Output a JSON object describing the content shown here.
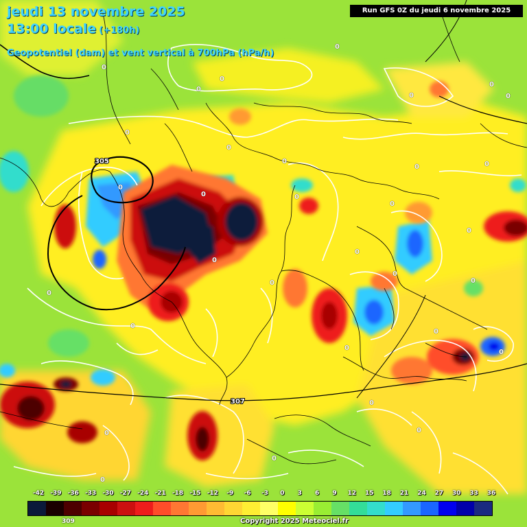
{
  "header": {
    "title": "jeudi 13 novembre 2025",
    "time": "13:00 locale",
    "lead": "(+180h)",
    "subtitle": "Geopotentiel (dam) et vent vertical à 700hPa (hPa/h)",
    "run": "Run GFS 0Z du jeudi 6 novembre 2025"
  },
  "legend": {
    "labels": [
      "-42",
      "-39",
      "-36",
      "-33",
      "-30",
      "-27",
      "-24",
      "-21",
      "-18",
      "-15",
      "-12",
      "-9",
      "-6",
      "-3",
      "0",
      "3",
      "6",
      "9",
      "12",
      "15",
      "18",
      "21",
      "24",
      "27",
      "30",
      "33",
      "36"
    ],
    "colors": [
      "#0b1a3a",
      "#1a0000",
      "#4d0000",
      "#7a0000",
      "#a80000",
      "#cc1010",
      "#ee1c1c",
      "#ff4d2a",
      "#ff7733",
      "#ff9a33",
      "#ffbb33",
      "#ffd633",
      "#ffee33",
      "#ffff66",
      "#ffff00",
      "#ccff33",
      "#99ee33",
      "#66e066",
      "#33dd99",
      "#33ddcc",
      "#33ccff",
      "#3399ff",
      "#1a66ff",
      "#0000ee",
      "#0000aa",
      "#1a2a80"
    ]
  },
  "isohypses": {
    "labels": [
      "305",
      "307",
      "309"
    ]
  },
  "zero_labels": [
    "0",
    "0",
    "0",
    "0",
    "0",
    "0",
    "0",
    "0",
    "0",
    "0",
    "0",
    "0",
    "0",
    "0",
    "0",
    "0",
    "0",
    "0",
    "0",
    "0",
    "0",
    "0",
    "0",
    "0",
    "0",
    "0",
    "0",
    "0",
    "0",
    "0",
    "0",
    "0"
  ],
  "footer": {
    "copyright": "Copyright 2025 Meteociel.fr"
  }
}
